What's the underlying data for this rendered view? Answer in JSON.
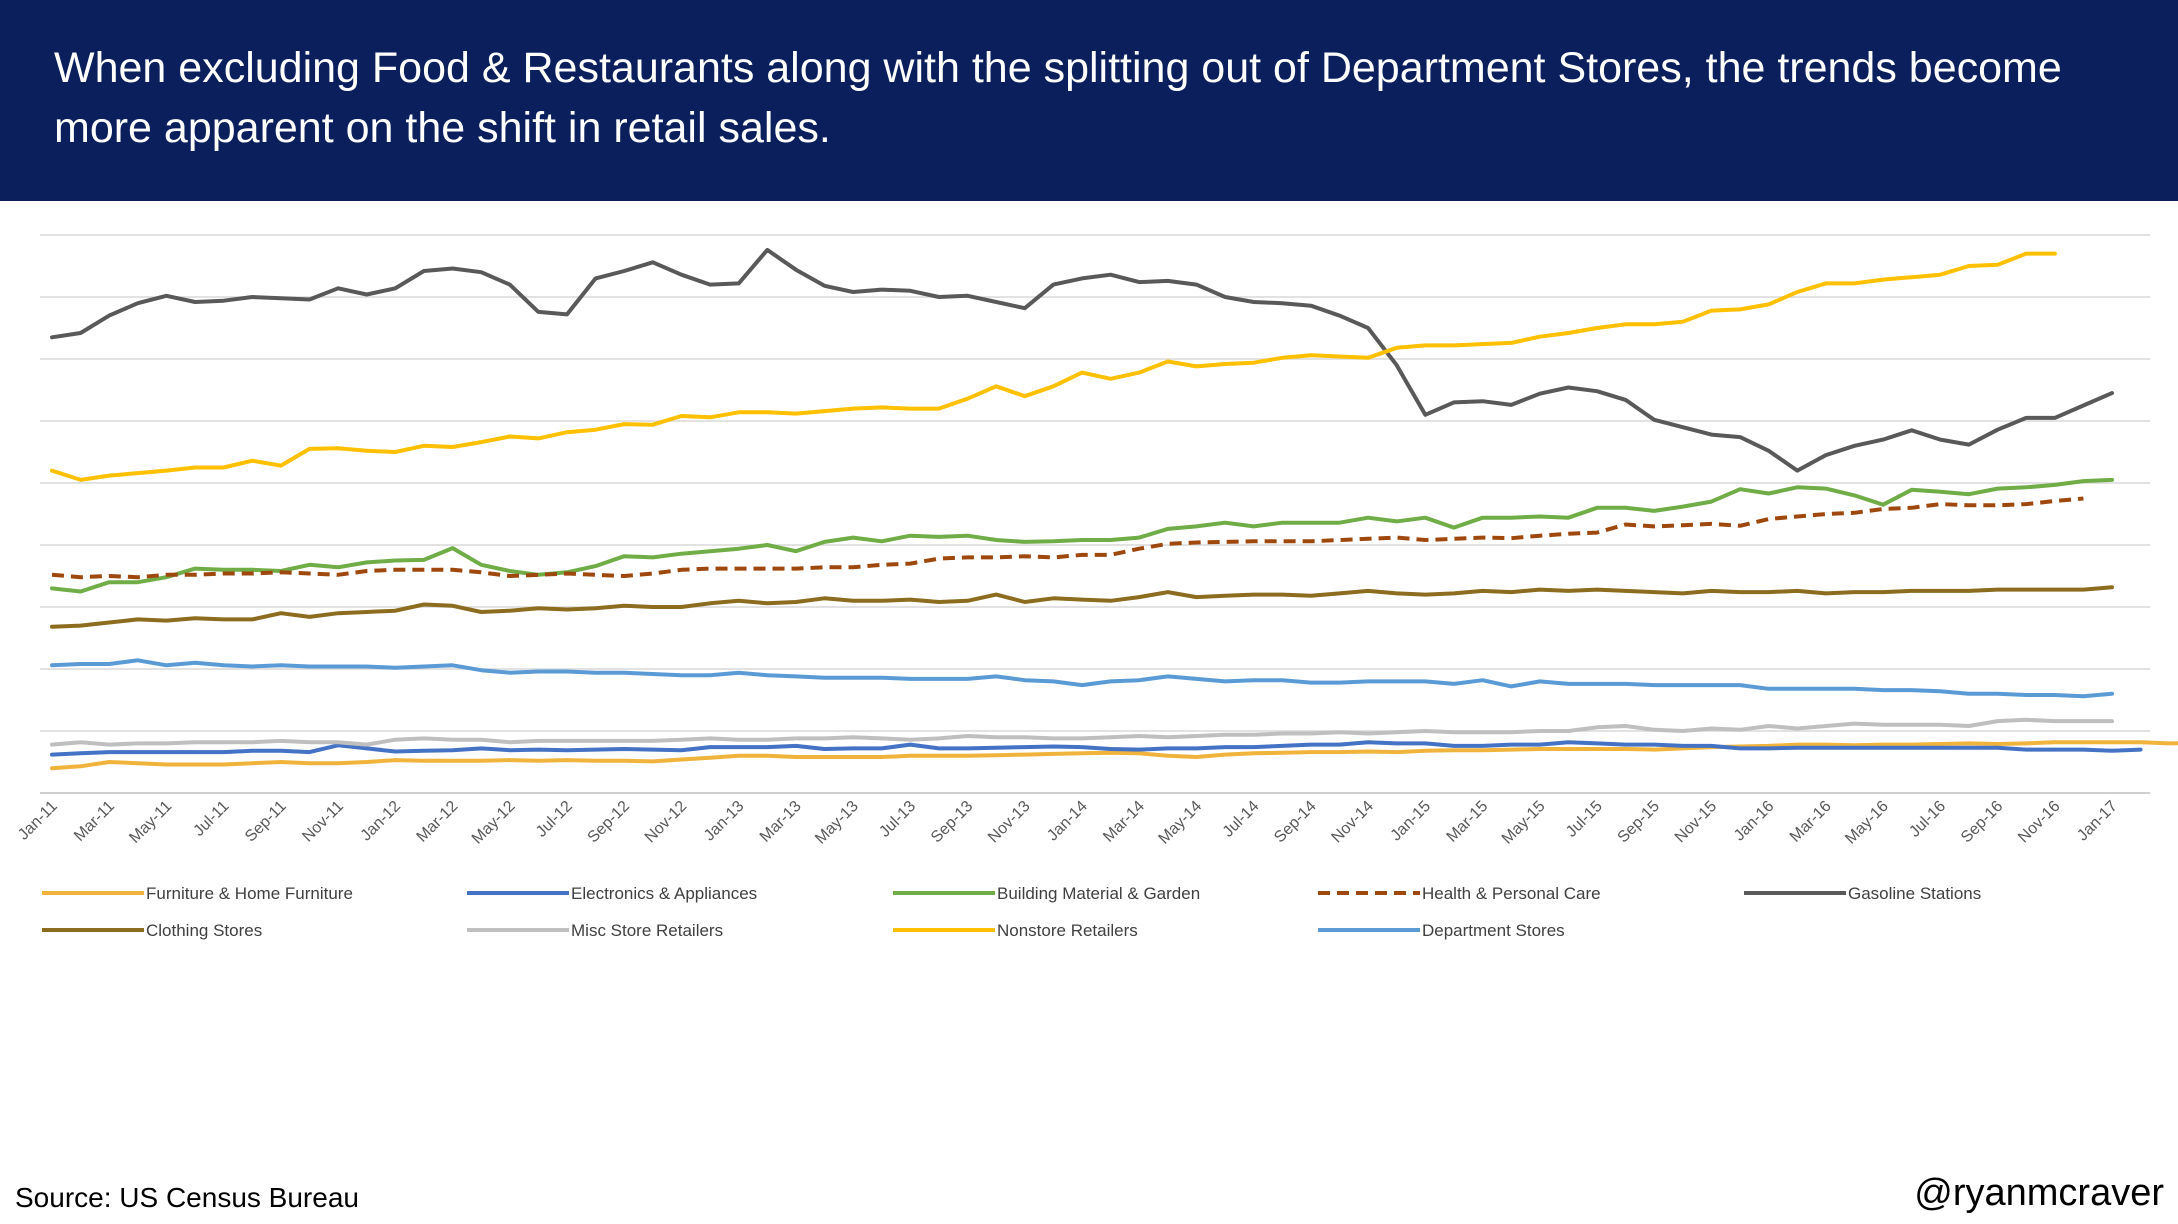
{
  "header": {
    "title": "When excluding Food & Restaurants along with the splitting out of Department Stores, the trends become more apparent on the shift in retail sales."
  },
  "footer": {
    "source": "Source: US Census Bureau",
    "handle": "@ryanmcraver"
  },
  "chart_data": {
    "type": "line",
    "title": "",
    "xlabel": "",
    "ylabel": "",
    "ylim": [
      0,
      9
    ],
    "y_axis_labels_shown": false,
    "grid": "horizontal",
    "gridline_count": 10,
    "legend_position": "bottom",
    "x_tick_labels": [
      "Jan-11",
      "Mar-11",
      "May-11",
      "Jul-11",
      "Sep-11",
      "Nov-11",
      "Jan-12",
      "Mar-12",
      "May-12",
      "Jul-12",
      "Sep-12",
      "Nov-12",
      "Jan-13",
      "Mar-13",
      "May-13",
      "Jul-13",
      "Sep-13",
      "Nov-13",
      "Jan-14",
      "Mar-14",
      "May-14",
      "Jul-14",
      "Sep-14",
      "Nov-14",
      "Jan-15",
      "Mar-15",
      "May-15",
      "Jul-15",
      "Sep-15",
      "Nov-15",
      "Jan-16",
      "Mar-16",
      "May-16",
      "Jul-16",
      "Sep-16",
      "Nov-16",
      "Jan-17"
    ],
    "x_start": "Jan-11",
    "x_frequency": "monthly",
    "series": [
      {
        "name": "Furniture & Home Furniture",
        "color": "#f0b43c",
        "dash": "solid",
        "values": [
          0.4,
          0.43,
          0.5,
          0.48,
          0.46,
          0.46,
          0.46,
          0.48,
          0.5,
          0.48,
          0.48,
          0.5,
          0.53,
          0.52,
          0.52,
          0.52,
          0.53,
          0.52,
          0.53,
          0.52,
          0.52,
          0.51,
          0.54,
          0.57,
          0.6,
          0.6,
          0.58,
          0.58,
          0.58,
          0.58,
          0.6,
          0.6,
          0.6,
          0.61,
          0.62,
          0.63,
          0.64,
          0.65,
          0.64,
          0.6,
          0.58,
          0.62,
          0.64,
          0.65,
          0.66,
          0.66,
          0.67,
          0.66,
          0.68,
          0.69,
          0.69,
          0.7,
          0.71,
          0.71,
          0.71,
          0.71,
          0.7,
          0.72,
          0.74,
          0.75,
          0.76,
          0.78,
          0.78,
          0.77,
          0.78,
          0.78,
          0.79,
          0.8,
          0.79,
          0.8,
          0.82,
          0.82,
          0.82,
          0.82,
          0.8,
          0.81,
          0.81,
          0.83,
          0.82,
          0.82,
          0.86,
          0.86,
          0.84,
          0.84,
          0.84
        ]
      },
      {
        "name": "Electronics & Appliances",
        "color": "#4472c4",
        "dash": "solid",
        "values": [
          0.62,
          0.64,
          0.66,
          0.66,
          0.66,
          0.66,
          0.66,
          0.68,
          0.68,
          0.66,
          0.77,
          0.72,
          0.67,
          0.68,
          0.69,
          0.72,
          0.69,
          0.7,
          0.69,
          0.7,
          0.71,
          0.7,
          0.69,
          0.74,
          0.74,
          0.74,
          0.76,
          0.71,
          0.72,
          0.72,
          0.78,
          0.72,
          0.72,
          0.73,
          0.74,
          0.75,
          0.74,
          0.71,
          0.7,
          0.72,
          0.72,
          0.74,
          0.74,
          0.76,
          0.78,
          0.78,
          0.82,
          0.8,
          0.8,
          0.76,
          0.76,
          0.78,
          0.78,
          0.82,
          0.8,
          0.78,
          0.78,
          0.76,
          0.76,
          0.72,
          0.72,
          0.73,
          0.73,
          0.73,
          0.73,
          0.73,
          0.73,
          0.73,
          0.73,
          0.7,
          0.7,
          0.7,
          0.68,
          0.7
        ]
      },
      {
        "name": "Building Material & Garden",
        "color": "#70ad47",
        "dash": "solid",
        "values": [
          3.3,
          3.25,
          3.4,
          3.4,
          3.48,
          3.62,
          3.6,
          3.6,
          3.58,
          3.68,
          3.64,
          3.72,
          3.75,
          3.76,
          3.95,
          3.68,
          3.58,
          3.52,
          3.56,
          3.66,
          3.82,
          3.8,
          3.86,
          3.9,
          3.94,
          4.0,
          3.9,
          4.05,
          4.12,
          4.06,
          4.15,
          4.13,
          4.15,
          4.08,
          4.05,
          4.06,
          4.08,
          4.08,
          4.12,
          4.26,
          4.3,
          4.36,
          4.3,
          4.36,
          4.36,
          4.36,
          4.44,
          4.38,
          4.44,
          4.28,
          4.44,
          4.44,
          4.46,
          4.44,
          4.6,
          4.6,
          4.55,
          4.62,
          4.7,
          4.9,
          4.83,
          4.93,
          4.91,
          4.8,
          4.65,
          4.89,
          4.86,
          4.82,
          4.91,
          4.93,
          4.97,
          5.03,
          5.05
        ]
      },
      {
        "name": "Health & Personal Care",
        "color": "#9e480e",
        "dash": "dashed",
        "values": [
          3.52,
          3.48,
          3.5,
          3.48,
          3.52,
          3.52,
          3.54,
          3.54,
          3.56,
          3.54,
          3.52,
          3.58,
          3.6,
          3.6,
          3.6,
          3.56,
          3.5,
          3.52,
          3.54,
          3.52,
          3.5,
          3.54,
          3.6,
          3.62,
          3.62,
          3.62,
          3.62,
          3.64,
          3.64,
          3.68,
          3.7,
          3.78,
          3.8,
          3.8,
          3.82,
          3.8,
          3.84,
          3.84,
          3.94,
          4.02,
          4.04,
          4.05,
          4.06,
          4.06,
          4.06,
          4.08,
          4.1,
          4.12,
          4.08,
          4.1,
          4.12,
          4.11,
          4.15,
          4.18,
          4.2,
          4.33,
          4.3,
          4.32,
          4.34,
          4.31,
          4.42,
          4.46,
          4.5,
          4.52,
          4.58,
          4.6,
          4.66,
          4.64,
          4.64,
          4.66,
          4.71,
          4.75
        ]
      },
      {
        "name": "Gasoline Stations",
        "color": "#595959",
        "dash": "solid",
        "values": [
          7.35,
          7.42,
          7.7,
          7.9,
          8.02,
          7.92,
          7.94,
          8.0,
          7.98,
          7.96,
          8.14,
          8.04,
          8.14,
          8.42,
          8.46,
          8.4,
          8.2,
          7.76,
          7.72,
          8.3,
          8.42,
          8.56,
          8.36,
          8.2,
          8.22,
          8.76,
          8.44,
          8.18,
          8.08,
          8.12,
          8.1,
          8.0,
          8.02,
          7.92,
          7.82,
          8.2,
          8.3,
          8.36,
          8.24,
          8.26,
          8.2,
          8.0,
          7.92,
          7.9,
          7.86,
          7.7,
          7.5,
          6.9,
          6.1,
          6.3,
          6.32,
          6.26,
          6.44,
          6.54,
          6.48,
          6.34,
          6.02,
          5.9,
          5.78,
          5.74,
          5.52,
          5.2,
          5.45,
          5.6,
          5.7,
          5.85,
          5.7,
          5.62,
          5.86,
          6.05,
          6.05,
          6.25,
          6.45
        ]
      },
      {
        "name": "Clothing Stores",
        "color": "#8c6d1f",
        "dash": "solid",
        "values": [
          2.68,
          2.7,
          2.75,
          2.8,
          2.78,
          2.82,
          2.8,
          2.8,
          2.9,
          2.84,
          2.9,
          2.92,
          2.94,
          3.04,
          3.02,
          2.92,
          2.94,
          2.98,
          2.96,
          2.98,
          3.02,
          3.0,
          3.0,
          3.06,
          3.1,
          3.06,
          3.08,
          3.14,
          3.1,
          3.1,
          3.12,
          3.08,
          3.1,
          3.2,
          3.08,
          3.14,
          3.12,
          3.1,
          3.16,
          3.24,
          3.16,
          3.18,
          3.2,
          3.2,
          3.18,
          3.22,
          3.26,
          3.22,
          3.2,
          3.22,
          3.26,
          3.24,
          3.28,
          3.26,
          3.28,
          3.26,
          3.24,
          3.22,
          3.26,
          3.24,
          3.24,
          3.26,
          3.22,
          3.24,
          3.24,
          3.26,
          3.26,
          3.26,
          3.28,
          3.28,
          3.28,
          3.28,
          3.32
        ]
      },
      {
        "name": "Misc Store Retailers",
        "color": "#bfbfbf",
        "dash": "solid",
        "values": [
          0.78,
          0.82,
          0.78,
          0.8,
          0.8,
          0.82,
          0.82,
          0.82,
          0.84,
          0.82,
          0.82,
          0.78,
          0.86,
          0.88,
          0.86,
          0.86,
          0.82,
          0.84,
          0.84,
          0.84,
          0.84,
          0.84,
          0.86,
          0.88,
          0.86,
          0.86,
          0.88,
          0.88,
          0.9,
          0.88,
          0.86,
          0.88,
          0.92,
          0.9,
          0.9,
          0.88,
          0.88,
          0.9,
          0.92,
          0.9,
          0.92,
          0.94,
          0.94,
          0.96,
          0.96,
          0.98,
          0.96,
          0.98,
          1.0,
          0.98,
          0.98,
          0.98,
          1.0,
          1.0,
          1.06,
          1.08,
          1.02,
          1.0,
          1.04,
          1.02,
          1.08,
          1.04,
          1.08,
          1.12,
          1.1,
          1.1,
          1.1,
          1.08,
          1.16,
          1.18,
          1.16,
          1.16,
          1.16
        ]
      },
      {
        "name": "Nonstore Retailers",
        "color": "#ffc000",
        "dash": "solid",
        "values": [
          5.2,
          5.05,
          5.12,
          5.16,
          5.2,
          5.25,
          5.25,
          5.36,
          5.28,
          5.55,
          5.56,
          5.52,
          5.5,
          5.6,
          5.58,
          5.66,
          5.75,
          5.72,
          5.82,
          5.86,
          5.95,
          5.94,
          6.08,
          6.06,
          6.14,
          6.14,
          6.12,
          6.16,
          6.2,
          6.22,
          6.2,
          6.2,
          6.36,
          6.56,
          6.4,
          6.56,
          6.78,
          6.68,
          6.78,
          6.96,
          6.88,
          6.92,
          6.94,
          7.02,
          7.06,
          7.04,
          7.02,
          7.18,
          7.22,
          7.22,
          7.24,
          7.26,
          7.36,
          7.42,
          7.5,
          7.56,
          7.56,
          7.6,
          7.78,
          7.8,
          7.88,
          8.08,
          8.22,
          8.22,
          8.28,
          8.32,
          8.36,
          8.5,
          8.52,
          8.7,
          8.7
        ]
      },
      {
        "name": "Department Stores",
        "color": "#5b9bd5",
        "dash": "solid",
        "values": [
          2.06,
          2.08,
          2.08,
          2.14,
          2.06,
          2.1,
          2.06,
          2.04,
          2.06,
          2.04,
          2.04,
          2.04,
          2.02,
          2.04,
          2.06,
          1.98,
          1.94,
          1.96,
          1.96,
          1.94,
          1.94,
          1.92,
          1.9,
          1.9,
          1.94,
          1.9,
          1.88,
          1.86,
          1.86,
          1.86,
          1.84,
          1.84,
          1.84,
          1.88,
          1.82,
          1.8,
          1.74,
          1.8,
          1.82,
          1.88,
          1.84,
          1.8,
          1.82,
          1.82,
          1.78,
          1.78,
          1.8,
          1.8,
          1.8,
          1.76,
          1.82,
          1.72,
          1.8,
          1.76,
          1.76,
          1.76,
          1.74,
          1.74,
          1.74,
          1.74,
          1.68,
          1.68,
          1.68,
          1.68,
          1.66,
          1.66,
          1.64,
          1.6,
          1.6,
          1.58,
          1.58,
          1.56,
          1.6
        ]
      }
    ]
  }
}
